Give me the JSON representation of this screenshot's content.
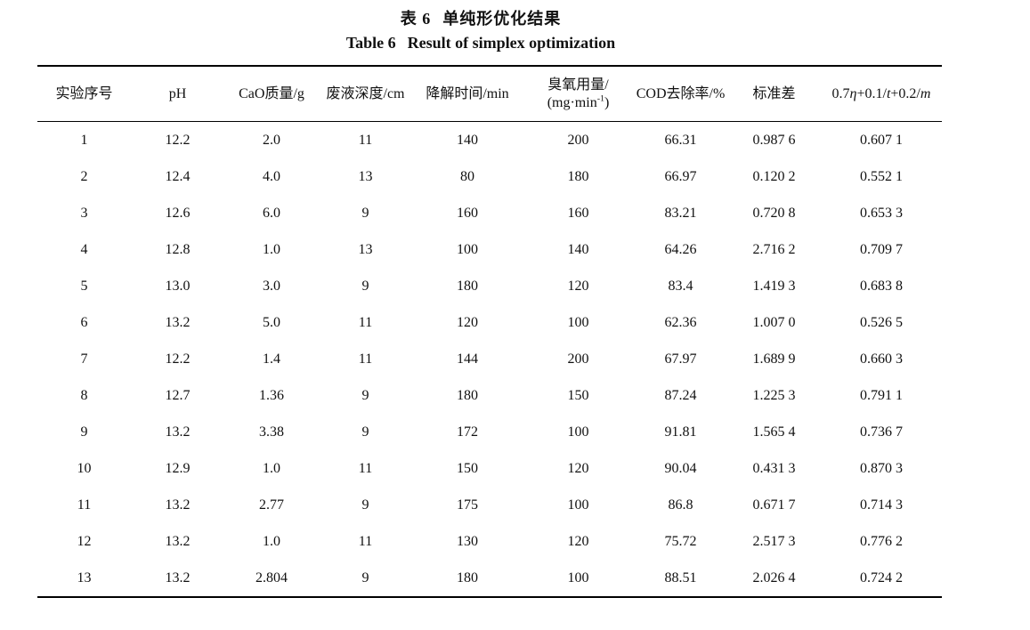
{
  "colors": {
    "background": "#ffffff",
    "text": "#111111",
    "rule": "#000000"
  },
  "title": {
    "zh_label": "表 6",
    "zh_text": "单纯形优化结果",
    "en_label": "Table 6",
    "en_text": "Result of simplex optimization"
  },
  "table": {
    "headers": [
      {
        "label": "实验序号"
      },
      {
        "label": "pH"
      },
      {
        "label": "CaO质量/g"
      },
      {
        "label": "废液深度/cm"
      },
      {
        "label": "降解时间/min"
      },
      {
        "line1": "臭氧用量/",
        "line2_pre": "(mg·min",
        "line2_sup": "-1",
        "line2_post": ")"
      },
      {
        "label": "COD去除率/%"
      },
      {
        "label": "标准差"
      },
      {
        "parts": [
          {
            "t": "0.7"
          },
          {
            "t": "η",
            "italic": true
          },
          {
            "t": "+0.1/"
          },
          {
            "t": "t",
            "italic": true
          },
          {
            "t": "+0.2/"
          },
          {
            "t": "m",
            "italic": true
          }
        ]
      }
    ],
    "rows": [
      [
        "1",
        "12.2",
        "2.0",
        "11",
        "140",
        "200",
        "66.31",
        "0.987 6",
        "0.607 1"
      ],
      [
        "2",
        "12.4",
        "4.0",
        "13",
        "80",
        "180",
        "66.97",
        "0.120 2",
        "0.552 1"
      ],
      [
        "3",
        "12.6",
        "6.0",
        "9",
        "160",
        "160",
        "83.21",
        "0.720 8",
        "0.653 3"
      ],
      [
        "4",
        "12.8",
        "1.0",
        "13",
        "100",
        "140",
        "64.26",
        "2.716 2",
        "0.709 7"
      ],
      [
        "5",
        "13.0",
        "3.0",
        "9",
        "180",
        "120",
        "83.4",
        "1.419 3",
        "0.683 8"
      ],
      [
        "6",
        "13.2",
        "5.0",
        "11",
        "120",
        "100",
        "62.36",
        "1.007 0",
        "0.526 5"
      ],
      [
        "7",
        "12.2",
        "1.4",
        "11",
        "144",
        "200",
        "67.97",
        "1.689 9",
        "0.660 3"
      ],
      [
        "8",
        "12.7",
        "1.36",
        "9",
        "180",
        "150",
        "87.24",
        "1.225 3",
        "0.791 1"
      ],
      [
        "9",
        "13.2",
        "3.38",
        "9",
        "172",
        "100",
        "91.81",
        "1.565 4",
        "0.736 7"
      ],
      [
        "10",
        "12.9",
        "1.0",
        "11",
        "150",
        "120",
        "90.04",
        "0.431 3",
        "0.870 3"
      ],
      [
        "11",
        "13.2",
        "2.77",
        "9",
        "175",
        "100",
        "86.8",
        "0.671 7",
        "0.714 3"
      ],
      [
        "12",
        "13.2",
        "1.0",
        "11",
        "130",
        "120",
        "75.72",
        "2.517 3",
        "0.776 2"
      ],
      [
        "13",
        "13.2",
        "2.804",
        "9",
        "180",
        "100",
        "88.51",
        "2.026 4",
        "0.724 2"
      ]
    ]
  }
}
